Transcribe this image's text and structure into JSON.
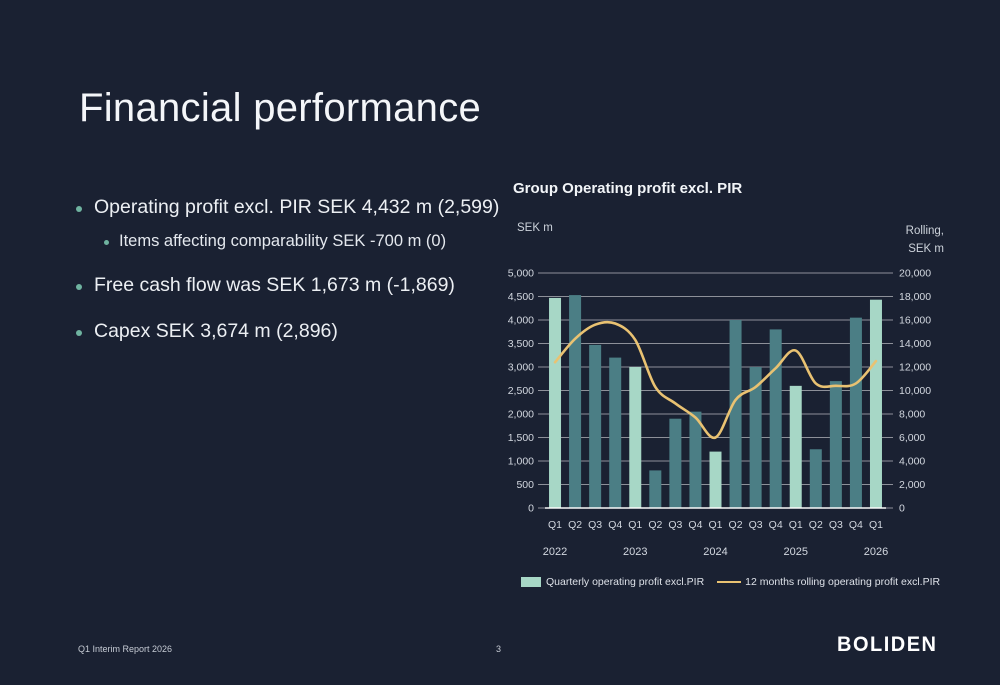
{
  "slide": {
    "title": "Financial performance",
    "bullets": [
      {
        "level": 1,
        "text": "Operating profit excl. PIR SEK 4,432 m (2,599)"
      },
      {
        "level": 2,
        "text": "Items affecting comparability SEK -700 m (0)"
      },
      {
        "level": 1,
        "text": "Free cash flow was SEK 1,673 m (-1,869)"
      },
      {
        "level": 1,
        "text": "Capex SEK 3,674 m (2,896)"
      }
    ]
  },
  "chart": {
    "title": "Group Operating profit excl. PIR",
    "left_axis_unit": "SEK m",
    "right_axis_unit_line1": "Rolling,",
    "right_axis_unit_line2": "SEK m",
    "legend": [
      {
        "type": "bar",
        "label": "Quarterly operating profit excl.PIR"
      },
      {
        "type": "line",
        "label": "12 months rolling operating profit excl.PIR"
      }
    ]
  },
  "chart_data": {
    "type": "bar+line combo",
    "categories": [
      "Q1",
      "Q2",
      "Q3",
      "Q4",
      "Q1",
      "Q2",
      "Q3",
      "Q4",
      "Q1",
      "Q2",
      "Q3",
      "Q4",
      "Q1",
      "Q2",
      "Q3",
      "Q4",
      "Q1"
    ],
    "years": [
      {
        "label": "2022",
        "index": 0
      },
      {
        "label": "2023",
        "index": 4
      },
      {
        "label": "2024",
        "index": 8
      },
      {
        "label": "2025",
        "index": 12
      },
      {
        "label": "2026",
        "index": 16
      }
    ],
    "series": [
      {
        "name": "Quarterly operating profit excl.PIR",
        "type": "bar",
        "axis": "left",
        "values": [
          4470,
          4530,
          3470,
          3200,
          3000,
          800,
          1900,
          2050,
          1200,
          4000,
          3000,
          3800,
          2599,
          1250,
          2700,
          4050,
          4432
        ]
      },
      {
        "name": "12 months rolling operating profit excl.PIR",
        "type": "line",
        "axis": "right",
        "values": [
          12400,
          14400,
          15600,
          15700,
          14300,
          10300,
          8900,
          7700,
          6000,
          9200,
          10300,
          11900,
          13400,
          10600,
          10400,
          10600,
          12500
        ]
      }
    ],
    "left_axis": {
      "label": "SEK m",
      "min": 0,
      "max": 5000,
      "step": 500
    },
    "right_axis": {
      "label": "Rolling, SEK m",
      "min": 0,
      "max": 20000,
      "step": 2000
    },
    "legend_position": "bottom",
    "grid": true,
    "colors": {
      "bar_q1": "#a7d7c6",
      "bar_other": "#4b7e85",
      "line": "#e9c272"
    }
  },
  "footer": {
    "report": "Q1 Interim Report 2026",
    "page": "3",
    "logo": "BOLIDEN"
  }
}
